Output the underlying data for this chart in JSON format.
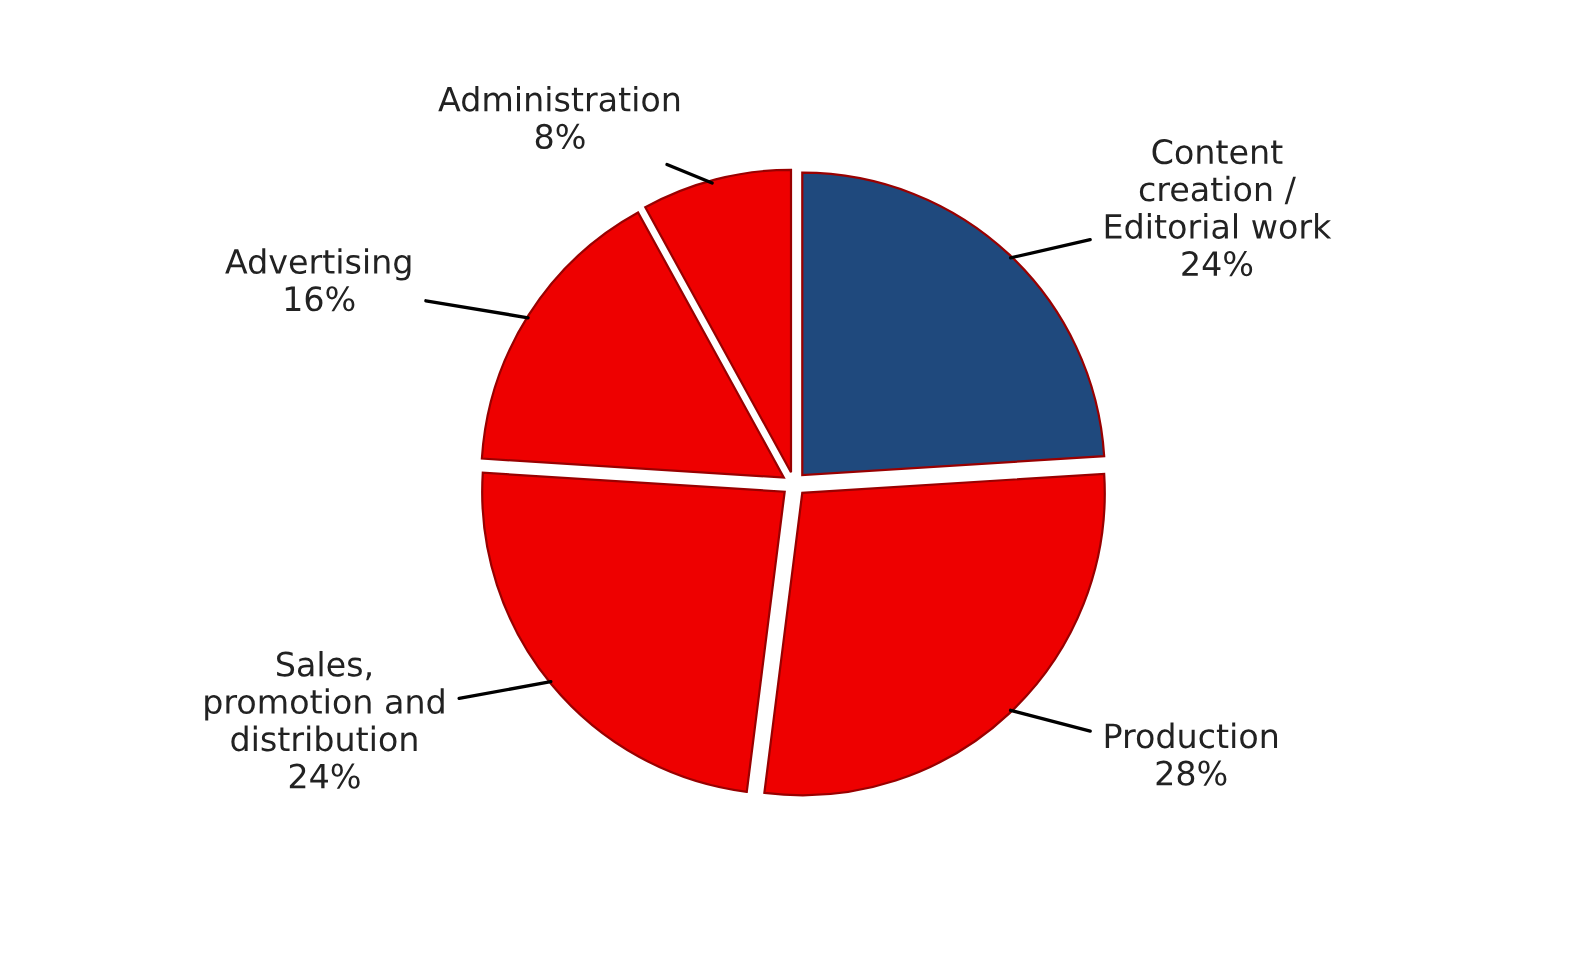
{
  "chart_data": {
    "type": "pie",
    "categories": [
      "Content\ncreation /\nEditorial work",
      "Production",
      "Sales,\npromotion and\ndistribution",
      "Advertising",
      "Administration"
    ],
    "values": [
      24,
      28,
      24,
      16,
      8
    ],
    "colors": [
      "#1f497d",
      "#ee0000",
      "#ee0000",
      "#ee0000",
      "#ee0000"
    ],
    "value_labels": [
      "24%",
      "28%",
      "24%",
      "16%",
      "8%"
    ],
    "legend": false
  }
}
